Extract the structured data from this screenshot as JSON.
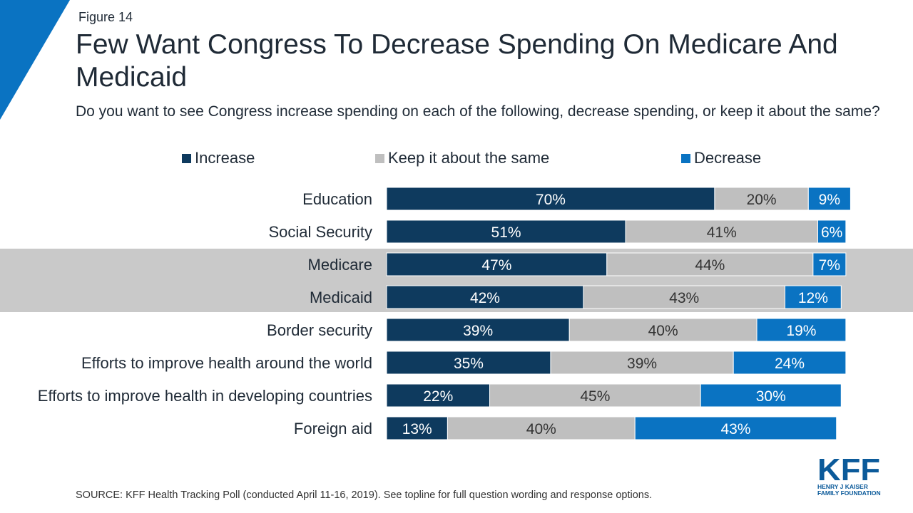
{
  "header": {
    "figure_label": "Figure 14",
    "title": "Few Want Congress To Decrease Spending On Medicare And Medicaid",
    "subtitle": "Do you want to see Congress increase spending on each of the following, decrease spending, or keep it about the same?"
  },
  "colors": {
    "increase": "#0e3a5e",
    "same": "#bfbfbf",
    "decrease": "#0a73c2",
    "corner": "#0a73c2",
    "highlight": "#c9c9c9",
    "label_light": "#ffffff",
    "label_dark": "#333333"
  },
  "chart_data": {
    "type": "bar",
    "orientation": "horizontal",
    "stacked": true,
    "categories": [
      "Education",
      "Social Security",
      "Medicare",
      "Medicaid",
      "Border security",
      "Efforts to improve health around the world",
      "Efforts to improve health in developing countries",
      "Foreign aid"
    ],
    "series": [
      {
        "name": "Increase",
        "values": [
          70,
          51,
          47,
          42,
          39,
          35,
          22,
          13
        ]
      },
      {
        "name": "Keep it about the same",
        "values": [
          20,
          41,
          44,
          43,
          40,
          39,
          45,
          40
        ]
      },
      {
        "name": "Decrease",
        "values": [
          9,
          6,
          7,
          12,
          19,
          24,
          30,
          43
        ]
      }
    ],
    "value_suffix": "%",
    "highlighted_categories": [
      "Medicare",
      "Medicaid"
    ],
    "legend_position": "top",
    "grid": false
  },
  "source": "SOURCE: KFF Health Tracking Poll (conducted April 11-16, 2019). See topline for full question wording and response options.",
  "logo": {
    "name": "KFF",
    "line1": "HENRY J KAISER",
    "line2": "FAMILY FOUNDATION"
  }
}
